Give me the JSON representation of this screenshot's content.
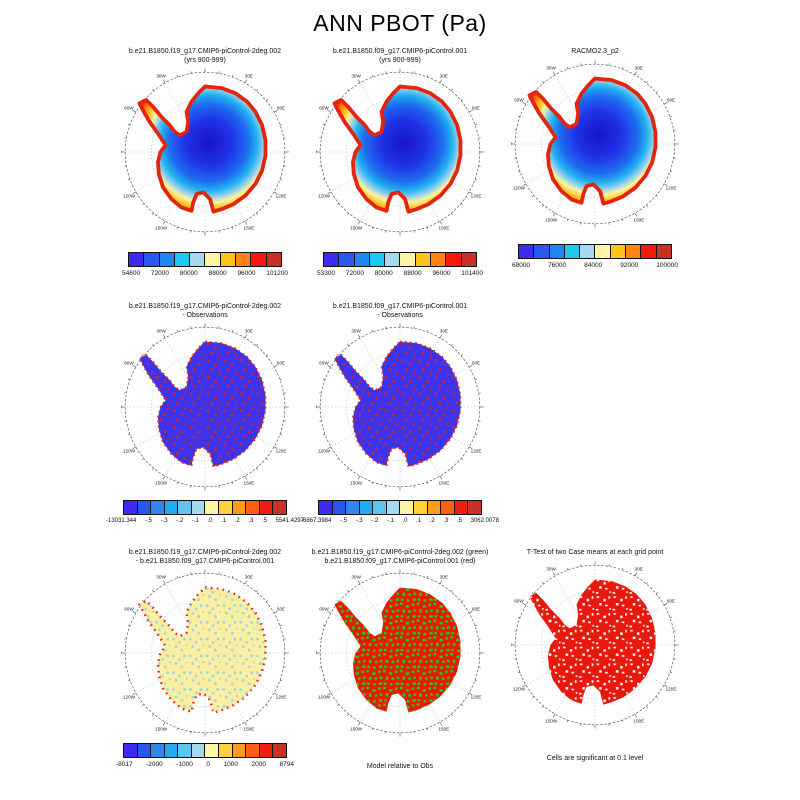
{
  "chart_data": {
    "type": "heatmap",
    "title": "ANN PBOT (Pa)",
    "units": "Pa",
    "projection": "south polar stereographic map of Antarctica",
    "meridian_labels": [
      "0",
      "30E",
      "60E",
      "90E",
      "120E",
      "150E",
      "180",
      "150W",
      "120W",
      "90W",
      "60W",
      "30W"
    ],
    "panels": [
      {
        "title1": "b.e21.B1850.f19_g17.CMIP6-piControl-2deg.002",
        "title2": "(yrs 900-999)",
        "style": "field",
        "colorbar": {
          "colors": [
            "#3c2bee",
            "#2a59f0",
            "#1e86f5",
            "#1fc8f0",
            "#a8d8ef",
            "#fdf5a3",
            "#ffc31e",
            "#ff8414",
            "#f7190d",
            "#c93028"
          ],
          "labels": [
            "54600",
            "72000",
            "80000",
            "88000",
            "96000",
            "101200"
          ]
        }
      },
      {
        "title1": "b.e21.B1850.f09_g17.CMIP6-piControl.001",
        "title2": "(yrs 900-999)",
        "style": "field",
        "colorbar": {
          "colors": [
            "#3c2bee",
            "#2a59f0",
            "#1e86f5",
            "#1fc8f0",
            "#a8d8ef",
            "#fdf5a3",
            "#ffc31e",
            "#ff8414",
            "#f7190d",
            "#c93028"
          ],
          "labels": [
            "53300",
            "72000",
            "80000",
            "88000",
            "96000",
            "101400"
          ]
        }
      },
      {
        "title1": "RACMO2.3_p2",
        "title2": "",
        "style": "field",
        "colorbar": {
          "colors": [
            "#3c2bee",
            "#2a59f0",
            "#1e86f5",
            "#1fc8f0",
            "#a8d8ef",
            "#fdf5a3",
            "#ffc31e",
            "#ff8414",
            "#f7190d",
            "#c93028"
          ],
          "labels": [
            "68000",
            "76000",
            "84000",
            "92000",
            "100000"
          ]
        }
      },
      {
        "title1": "b.e21.B1850.f19_g17.CMIP6-piControl-2deg.002",
        "title2": "- Observations",
        "style": "diffblue",
        "colorbar": {
          "colors": [
            "#3c2bee",
            "#2a55f0",
            "#2e86f0",
            "#22aaf2",
            "#5cc5f0",
            "#a8d8ef",
            "#fdf5a3",
            "#ffd23c",
            "#ff9c1e",
            "#ff5f14",
            "#f01e10",
            "#c93028"
          ],
          "labels": [
            "-13031.344",
            "-.5",
            "-.3",
            "-.2",
            "-.1",
            ".0",
            ".1",
            ".2",
            ".3",
            ".5",
            "5541.4297"
          ]
        }
      },
      {
        "title1": "b.e21.B1850.f09_g17.CMIP6-piControl.001",
        "title2": "- Observations",
        "style": "diffblue",
        "colorbar": {
          "colors": [
            "#3c2bee",
            "#2a55f0",
            "#2e86f0",
            "#22aaf2",
            "#5cc5f0",
            "#a8d8ef",
            "#fdf5a3",
            "#ffd23c",
            "#ff9c1e",
            "#ff5f14",
            "#f01e10",
            "#c93028"
          ],
          "labels": [
            "-6867.3984",
            "-.5",
            "-.3",
            "-.2",
            "-.1",
            ".0",
            ".1",
            ".2",
            ".3",
            ".5",
            "3062.0078"
          ]
        }
      },
      {
        "title1": "b.e21.B1850.f19_g17.CMIP6-piControl-2deg.002",
        "title2": "- b.e21.B1850.f09_g17.CMIP6-piControl.001",
        "style": "palemix",
        "colorbar": {
          "colors": [
            "#3c2bee",
            "#2a55f0",
            "#2e86f0",
            "#22aaf2",
            "#5cc5f0",
            "#a8d8ef",
            "#fdf5a3",
            "#ffd23c",
            "#ff9c1e",
            "#ff5f14",
            "#f01e10",
            "#c93028"
          ],
          "labels": [
            "-8017",
            "-2000",
            "-1000",
            "0",
            "1000",
            "2000",
            "8794"
          ]
        }
      },
      {
        "title1": "b.e21.B1850.f19_g17.CMIP6-piControl-2deg.002 (green)",
        "title2": "b.e21.B1850.f09_g17.CMIP6-piControl.001 (red)",
        "style": "redgreen",
        "caption": "Model relative to Obs"
      },
      {
        "title1": "T-Test of two Case means at each grid point",
        "title2": "",
        "style": "redwhite",
        "caption": "Cells are significant at 0.1 level"
      }
    ]
  }
}
